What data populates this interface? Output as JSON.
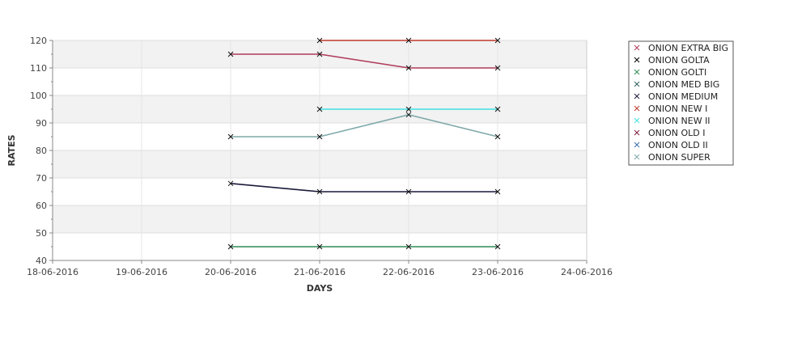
{
  "chart_data": {
    "type": "line",
    "title": "",
    "xlabel": "DAYS",
    "ylabel": "RATES",
    "x_ticks": [
      "18-06-2016",
      "19-06-2016",
      "20-06-2016",
      "21-06-2016",
      "22-06-2016",
      "23-06-2016",
      "24-06-2016"
    ],
    "ylim": [
      40,
      120
    ],
    "y_ticks": [
      40,
      50,
      60,
      70,
      80,
      90,
      100,
      110,
      120
    ],
    "grid": true,
    "legend_position": "right",
    "series": [
      {
        "name": "ONION EXTRA BIG",
        "color": "#b03a5a",
        "x": [
          "20-06-2016",
          "21-06-2016",
          "22-06-2016",
          "23-06-2016"
        ],
        "values": [
          115,
          115,
          110,
          110
        ]
      },
      {
        "name": "ONION GOLTA",
        "color": "#000000",
        "x": [],
        "values": []
      },
      {
        "name": "ONION GOLTI",
        "color": "#2e8b57",
        "x": [
          "20-06-2016",
          "21-06-2016",
          "22-06-2016",
          "23-06-2016"
        ],
        "values": [
          45,
          45,
          45,
          45
        ]
      },
      {
        "name": "ONION MED BIG",
        "color": "#2f5f5f",
        "x": [],
        "values": []
      },
      {
        "name": "ONION MEDIUM",
        "color": "#1a1a3a",
        "x": [
          "20-06-2016",
          "21-06-2016",
          "22-06-2016",
          "23-06-2016"
        ],
        "values": [
          68,
          65,
          65,
          65
        ]
      },
      {
        "name": "ONION NEW I",
        "color": "#c0392b",
        "x": [
          "21-06-2016",
          "22-06-2016",
          "23-06-2016"
        ],
        "values": [
          120,
          120,
          120
        ]
      },
      {
        "name": "ONION NEW II",
        "color": "#40e0e0",
        "x": [
          "21-06-2016",
          "22-06-2016",
          "23-06-2016"
        ],
        "values": [
          95,
          95,
          95
        ]
      },
      {
        "name": "ONION OLD I",
        "color": "#7a1f3a",
        "x": [],
        "values": []
      },
      {
        "name": "ONION OLD II",
        "color": "#3a6ea5",
        "x": [],
        "values": []
      },
      {
        "name": "ONION SUPER",
        "color": "#7fa8a8",
        "x": [
          "20-06-2016",
          "21-06-2016",
          "22-06-2016",
          "23-06-2016"
        ],
        "values": [
          85,
          85,
          93,
          85
        ]
      }
    ]
  }
}
